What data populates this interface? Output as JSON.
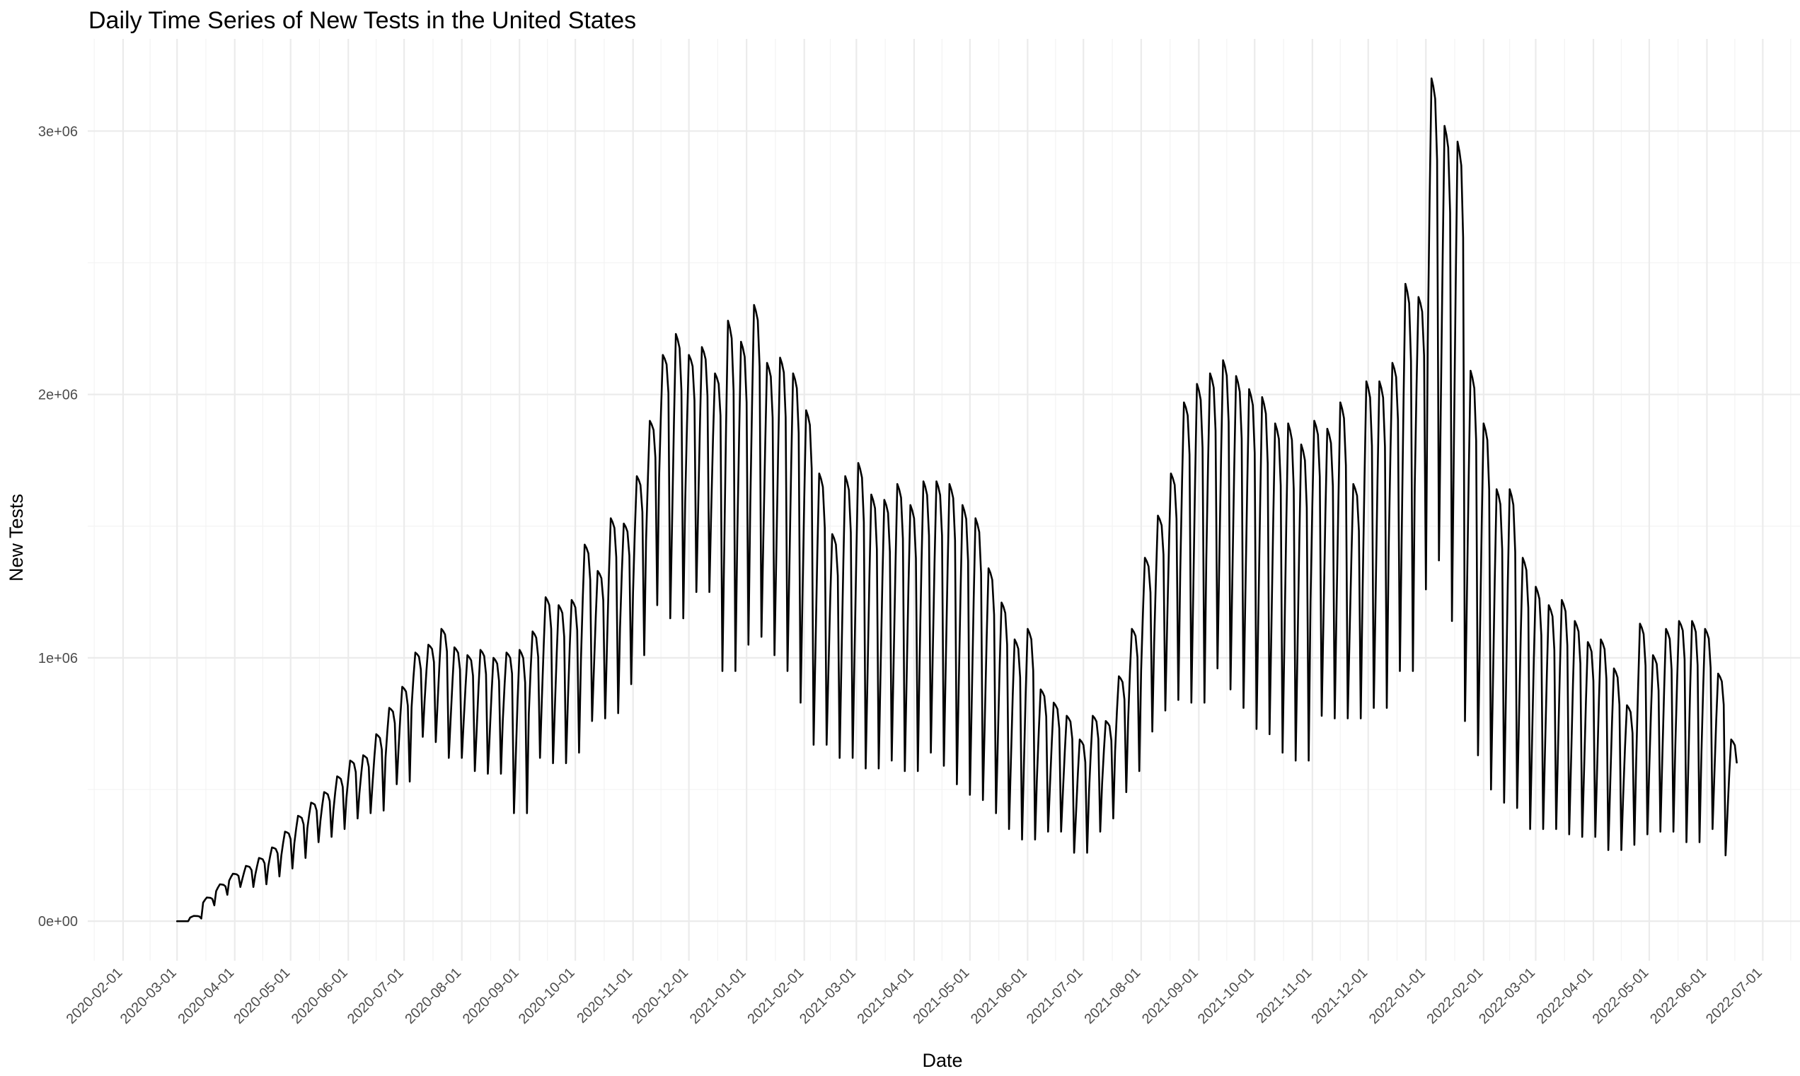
{
  "chart_data": {
    "type": "line",
    "title": "Daily Time Series of New Tests in the United States",
    "xlabel": "Date",
    "ylabel": "New Tests",
    "grid": true,
    "legend": "none",
    "x_axis": {
      "scale": "date",
      "range": [
        "2020-01-13",
        "2022-07-21"
      ],
      "tick_labels": [
        "2020-02-01",
        "2020-03-01",
        "2020-04-01",
        "2020-05-01",
        "2020-06-01",
        "2020-07-01",
        "2020-08-01",
        "2020-09-01",
        "2020-10-01",
        "2020-11-01",
        "2020-12-01",
        "2021-01-01",
        "2021-02-01",
        "2021-03-01",
        "2021-04-01",
        "2021-05-01",
        "2021-06-01",
        "2021-07-01",
        "2021-08-01",
        "2021-09-01",
        "2021-10-01",
        "2021-11-01",
        "2021-12-01",
        "2022-01-01",
        "2022-02-01",
        "2022-03-01",
        "2022-04-01",
        "2022-05-01",
        "2022-06-01",
        "2022-07-01"
      ]
    },
    "y_axis": {
      "range": [
        -150000,
        3350000
      ],
      "ticks": [
        0,
        1000000,
        2000000,
        3000000
      ],
      "tick_labels": [
        "0e+00",
        "1e+06",
        "2e+06",
        "3e+06"
      ]
    },
    "series": [
      {
        "line_color": "#000000",
        "weekly": [
          {
            "start": "2020-03-01",
            "peak": 0,
            "trough": 0
          },
          {
            "start": "2020-03-08",
            "peak": 20000,
            "trough": 10000
          },
          {
            "start": "2020-03-15",
            "peak": 90000,
            "trough": 60000
          },
          {
            "start": "2020-03-22",
            "peak": 140000,
            "trough": 100000
          },
          {
            "start": "2020-03-29",
            "peak": 180000,
            "trough": 140000
          },
          {
            "start": "2020-04-05",
            "peak": 210000,
            "trough": 130000
          },
          {
            "start": "2020-04-12",
            "peak": 240000,
            "trough": 140000
          },
          {
            "start": "2020-04-19",
            "peak": 280000,
            "trough": 170000
          },
          {
            "start": "2020-04-26",
            "peak": 340000,
            "trough": 200000
          },
          {
            "start": "2020-05-03",
            "peak": 400000,
            "trough": 240000
          },
          {
            "start": "2020-05-10",
            "peak": 450000,
            "trough": 300000
          },
          {
            "start": "2020-05-17",
            "peak": 490000,
            "trough": 320000
          },
          {
            "start": "2020-05-24",
            "peak": 550000,
            "trough": 350000
          },
          {
            "start": "2020-05-31",
            "peak": 610000,
            "trough": 390000
          },
          {
            "start": "2020-06-07",
            "peak": 630000,
            "trough": 410000
          },
          {
            "start": "2020-06-14",
            "peak": 710000,
            "trough": 420000
          },
          {
            "start": "2020-06-21",
            "peak": 810000,
            "trough": 520000
          },
          {
            "start": "2020-06-28",
            "peak": 890000,
            "trough": 530000
          },
          {
            "start": "2020-07-05",
            "peak": 1020000,
            "trough": 700000
          },
          {
            "start": "2020-07-12",
            "peak": 1050000,
            "trough": 720000
          },
          {
            "start": "2020-07-19",
            "peak": 1110000,
            "trough": 680000
          },
          {
            "start": "2020-07-26",
            "peak": 1040000,
            "trough": 620000
          },
          {
            "start": "2020-08-02",
            "peak": 1010000,
            "trough": 620000
          },
          {
            "start": "2020-08-09",
            "peak": 1030000,
            "trough": 570000
          },
          {
            "start": "2020-08-16",
            "peak": 1000000,
            "trough": 560000
          },
          {
            "start": "2020-08-23",
            "peak": 1020000,
            "trough": 620000
          },
          {
            "start": "2020-08-30",
            "peak": 1030000,
            "trough": 410000
          },
          {
            "start": "2020-09-06",
            "peak": 1100000,
            "trough": 620000
          },
          {
            "start": "2020-09-13",
            "peak": 1230000,
            "trough": 630000
          },
          {
            "start": "2020-09-20",
            "peak": 1200000,
            "trough": 600000
          },
          {
            "start": "2020-09-27",
            "peak": 1220000,
            "trough": 640000
          },
          {
            "start": "2020-10-04",
            "peak": 1430000,
            "trough": 760000
          },
          {
            "start": "2020-10-11",
            "peak": 1330000,
            "trough": 770000
          },
          {
            "start": "2020-10-18",
            "peak": 1530000,
            "trough": 790000
          },
          {
            "start": "2020-10-25",
            "peak": 1510000,
            "trough": 900000
          },
          {
            "start": "2020-11-01",
            "peak": 1690000,
            "trough": 1010000
          },
          {
            "start": "2020-11-08",
            "peak": 1900000,
            "trough": 1200000
          },
          {
            "start": "2020-11-15",
            "peak": 2150000,
            "trough": 1430000
          },
          {
            "start": "2020-11-22",
            "peak": 2230000,
            "trough": 1150000
          },
          {
            "start": "2020-11-29",
            "peak": 2150000,
            "trough": 1290000
          },
          {
            "start": "2020-12-06",
            "peak": 2180000,
            "trough": 1250000
          },
          {
            "start": "2020-12-13",
            "peak": 2080000,
            "trough": 1280000
          },
          {
            "start": "2020-12-20",
            "peak": 2280000,
            "trough": 950000
          },
          {
            "start": "2020-12-27",
            "peak": 2200000,
            "trough": 1050000
          },
          {
            "start": "2021-01-03",
            "peak": 2340000,
            "trough": 1170000
          },
          {
            "start": "2021-01-10",
            "peak": 2120000,
            "trough": 1080000
          },
          {
            "start": "2021-01-17",
            "peak": 2140000,
            "trough": 1010000
          },
          {
            "start": "2021-01-24",
            "peak": 2080000,
            "trough": 950000
          },
          {
            "start": "2021-01-31",
            "peak": 1940000,
            "trough": 830000
          },
          {
            "start": "2021-02-07",
            "peak": 1700000,
            "trough": 670000
          },
          {
            "start": "2021-02-14",
            "peak": 1470000,
            "trough": 680000
          },
          {
            "start": "2021-02-21",
            "peak": 1690000,
            "trough": 620000
          },
          {
            "start": "2021-02-28",
            "peak": 1740000,
            "trough": 620000
          },
          {
            "start": "2021-03-07",
            "peak": 1620000,
            "trough": 580000
          },
          {
            "start": "2021-03-14",
            "peak": 1600000,
            "trough": 610000
          },
          {
            "start": "2021-03-21",
            "peak": 1660000,
            "trough": 620000
          },
          {
            "start": "2021-03-28",
            "peak": 1580000,
            "trough": 570000
          },
          {
            "start": "2021-04-04",
            "peak": 1670000,
            "trough": 640000
          },
          {
            "start": "2021-04-11",
            "peak": 1670000,
            "trough": 640000
          },
          {
            "start": "2021-04-18",
            "peak": 1660000,
            "trough": 590000
          },
          {
            "start": "2021-04-25",
            "peak": 1580000,
            "trough": 520000
          },
          {
            "start": "2021-05-02",
            "peak": 1530000,
            "trough": 480000
          },
          {
            "start": "2021-05-09",
            "peak": 1340000,
            "trough": 460000
          },
          {
            "start": "2021-05-16",
            "peak": 1210000,
            "trough": 410000
          },
          {
            "start": "2021-05-23",
            "peak": 1070000,
            "trough": 350000
          },
          {
            "start": "2021-05-30",
            "peak": 1110000,
            "trough": 310000
          },
          {
            "start": "2021-06-06",
            "peak": 880000,
            "trough": 360000
          },
          {
            "start": "2021-06-13",
            "peak": 830000,
            "trough": 340000
          },
          {
            "start": "2021-06-20",
            "peak": 780000,
            "trough": 340000
          },
          {
            "start": "2021-06-27",
            "peak": 690000,
            "trough": 260000
          },
          {
            "start": "2021-07-04",
            "peak": 780000,
            "trough": 340000
          },
          {
            "start": "2021-07-11",
            "peak": 760000,
            "trough": 390000
          },
          {
            "start": "2021-07-18",
            "peak": 930000,
            "trough": 490000
          },
          {
            "start": "2021-07-25",
            "peak": 1110000,
            "trough": 570000
          },
          {
            "start": "2021-08-01",
            "peak": 1380000,
            "trough": 720000
          },
          {
            "start": "2021-08-08",
            "peak": 1540000,
            "trough": 800000
          },
          {
            "start": "2021-08-15",
            "peak": 1700000,
            "trough": 840000
          },
          {
            "start": "2021-08-22",
            "peak": 1970000,
            "trough": 980000
          },
          {
            "start": "2021-08-29",
            "peak": 2040000,
            "trough": 830000
          },
          {
            "start": "2021-09-05",
            "peak": 2080000,
            "trough": 990000
          },
          {
            "start": "2021-09-12",
            "peak": 2130000,
            "trough": 960000
          },
          {
            "start": "2021-09-19",
            "peak": 2070000,
            "trough": 880000
          },
          {
            "start": "2021-09-26",
            "peak": 2020000,
            "trough": 810000
          },
          {
            "start": "2021-10-03",
            "peak": 1990000,
            "trough": 730000
          },
          {
            "start": "2021-10-10",
            "peak": 1890000,
            "trough": 710000
          },
          {
            "start": "2021-10-17",
            "peak": 1890000,
            "trough": 640000
          },
          {
            "start": "2021-10-24",
            "peak": 1810000,
            "trough": 610000
          },
          {
            "start": "2021-10-31",
            "peak": 1900000,
            "trough": 840000
          },
          {
            "start": "2021-11-07",
            "peak": 1870000,
            "trough": 780000
          },
          {
            "start": "2021-11-14",
            "peak": 1970000,
            "trough": 770000
          },
          {
            "start": "2021-11-21",
            "peak": 1660000,
            "trough": 770000
          },
          {
            "start": "2021-11-28",
            "peak": 2050000,
            "trough": 820000
          },
          {
            "start": "2021-12-05",
            "peak": 2050000,
            "trough": 810000
          },
          {
            "start": "2021-12-12",
            "peak": 2120000,
            "trough": 1040000
          },
          {
            "start": "2021-12-19",
            "peak": 2420000,
            "trough": 950000
          },
          {
            "start": "2021-12-26",
            "peak": 2370000,
            "trough": 1260000
          },
          {
            "start": "2022-01-02",
            "peak": 3200000,
            "trough": 1650000
          },
          {
            "start": "2022-01-09",
            "peak": 3020000,
            "trough": 1370000
          },
          {
            "start": "2022-01-16",
            "peak": 2960000,
            "trough": 1140000
          },
          {
            "start": "2022-01-23",
            "peak": 2090000,
            "trough": 760000
          },
          {
            "start": "2022-01-30",
            "peak": 1890000,
            "trough": 630000
          },
          {
            "start": "2022-02-06",
            "peak": 1640000,
            "trough": 500000
          },
          {
            "start": "2022-02-13",
            "peak": 1640000,
            "trough": 450000
          },
          {
            "start": "2022-02-20",
            "peak": 1380000,
            "trough": 430000
          },
          {
            "start": "2022-02-27",
            "peak": 1270000,
            "trough": 350000
          },
          {
            "start": "2022-03-06",
            "peak": 1200000,
            "trough": 350000
          },
          {
            "start": "2022-03-13",
            "peak": 1220000,
            "trough": 350000
          },
          {
            "start": "2022-03-20",
            "peak": 1140000,
            "trough": 330000
          },
          {
            "start": "2022-03-27",
            "peak": 1060000,
            "trough": 320000
          },
          {
            "start": "2022-04-03",
            "peak": 1070000,
            "trough": 320000
          },
          {
            "start": "2022-04-10",
            "peak": 960000,
            "trough": 270000
          },
          {
            "start": "2022-04-17",
            "peak": 820000,
            "trough": 290000
          },
          {
            "start": "2022-04-24",
            "peak": 1130000,
            "trough": 330000
          },
          {
            "start": "2022-05-01",
            "peak": 1010000,
            "trough": 340000
          },
          {
            "start": "2022-05-08",
            "peak": 1110000,
            "trough": 340000
          },
          {
            "start": "2022-05-15",
            "peak": 1140000,
            "trough": 410000
          },
          {
            "start": "2022-05-22",
            "peak": 1140000,
            "trough": 300000
          },
          {
            "start": "2022-05-29",
            "peak": 1110000,
            "trough": 370000
          },
          {
            "start": "2022-06-05",
            "peak": 940000,
            "trough": 350000
          },
          {
            "start": "2022-06-12",
            "peak": 690000,
            "trough": 250000
          }
        ],
        "last_date": "2022-06-17"
      }
    ]
  }
}
